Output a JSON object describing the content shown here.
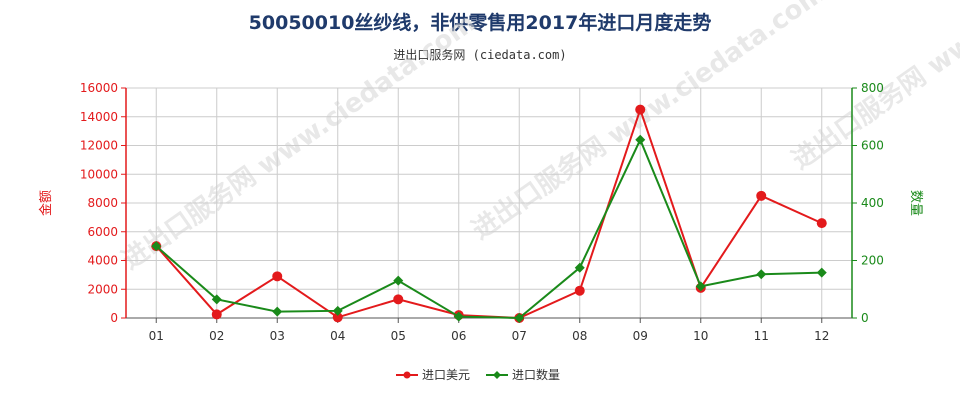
{
  "chart_data": {
    "type": "line",
    "title": "50050010丝纱线，非供零售用2017年进口月度走势",
    "subtitle": "进出口服务网 (ciedata.com)",
    "categories": [
      "01",
      "02",
      "03",
      "04",
      "05",
      "06",
      "07",
      "08",
      "09",
      "10",
      "11",
      "12"
    ],
    "y_left": {
      "label": "金额",
      "ticks": [
        "0",
        "2000",
        "4000",
        "6000",
        "8000",
        "10000",
        "12000",
        "14000",
        "16000"
      ],
      "ylim": [
        0,
        16000
      ]
    },
    "y_right": {
      "label": "数量",
      "ticks": [
        "0",
        "200",
        "400",
        "600",
        "800"
      ],
      "ylim": [
        0,
        800
      ]
    },
    "series": [
      {
        "name": "进口美元",
        "axis": "left",
        "color": "#e31a1c",
        "values": [
          5000,
          250,
          2900,
          50,
          1300,
          200,
          0,
          1900,
          14500,
          2100,
          8500,
          6600
        ]
      },
      {
        "name": "进口数量",
        "axis": "right",
        "color": "#1a8a1a",
        "values": [
          250,
          65,
          22,
          25,
          130,
          5,
          0,
          175,
          620,
          110,
          152,
          158
        ]
      }
    ],
    "grid": true,
    "legend": "bottom-center",
    "watermark": "进出口服务网 www.ciedata.com"
  }
}
